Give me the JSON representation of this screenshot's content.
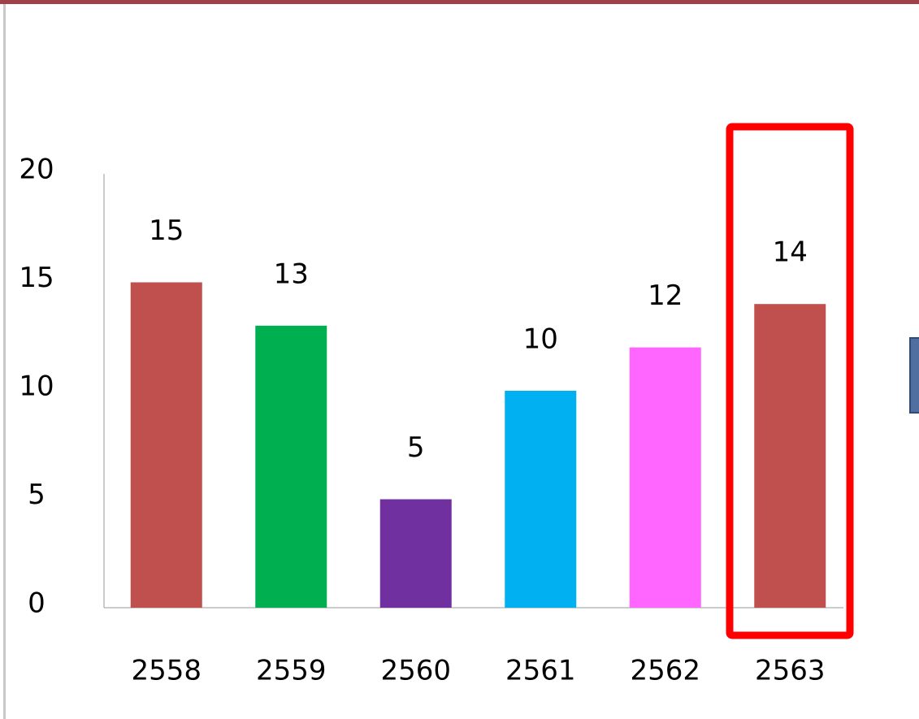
{
  "chart_data": {
    "type": "bar",
    "categories": [
      "2558",
      "2559",
      "2560",
      "2561",
      "2562",
      "2563"
    ],
    "values": [
      15,
      13,
      5,
      10,
      12,
      14
    ],
    "colors": [
      "#c0504d",
      "#00b050",
      "#7030a0",
      "#00b0f0",
      "#ff66ff",
      "#c0504d"
    ],
    "ylim": [
      0,
      20
    ],
    "yticks": [
      0,
      5,
      10,
      15,
      20
    ],
    "grid": false
  }
}
